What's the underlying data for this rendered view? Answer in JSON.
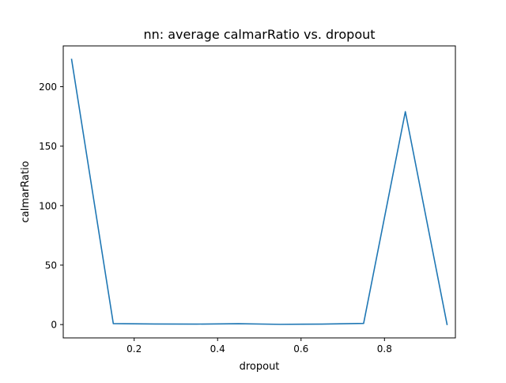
{
  "chart_data": {
    "type": "line",
    "title": "nn: average calmarRatio vs. dropout",
    "xlabel": "dropout",
    "ylabel": "calmarRatio",
    "xlim": [
      0.03,
      0.97
    ],
    "ylim": [
      -11.2,
      234.3
    ],
    "xticks": [
      0.2,
      0.4,
      0.6,
      0.8
    ],
    "xtick_labels": [
      "0.2",
      "0.4",
      "0.6",
      "0.8"
    ],
    "yticks": [
      0,
      50,
      100,
      150,
      200
    ],
    "ytick_labels": [
      "0",
      "50",
      "100",
      "150",
      "200"
    ],
    "grid": false,
    "legend": "none",
    "series": [
      {
        "color": "#1f77b4",
        "x": [
          0.05,
          0.15,
          0.25,
          0.35,
          0.45,
          0.55,
          0.65,
          0.75,
          0.85,
          0.95
        ],
        "y": [
          223,
          0.8,
          0.5,
          0.4,
          0.7,
          0.2,
          0.4,
          1.0,
          179,
          0.1
        ]
      }
    ]
  }
}
